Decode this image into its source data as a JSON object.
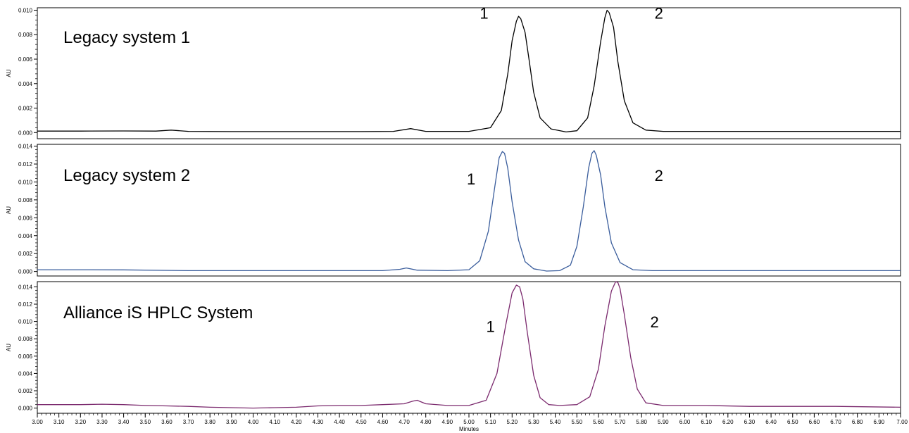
{
  "chart_data": [
    {
      "type": "line",
      "title": "Legacy system 1",
      "ylabel": "AU",
      "xlabel": "",
      "xlim": [
        3.0,
        7.0
      ],
      "ylim": [
        -0.0005,
        0.0102
      ],
      "yticks": [
        "0.000",
        "0.002",
        "0.004",
        "0.006",
        "0.008",
        "0.010"
      ],
      "color": "#000000",
      "series": [
        {
          "x": [
            3.0,
            3.2,
            3.4,
            3.55,
            3.62,
            3.7,
            3.9,
            4.2,
            4.5,
            4.65,
            4.73,
            4.8,
            5.0,
            5.1,
            5.15,
            5.18,
            5.2,
            5.22,
            5.23,
            5.24,
            5.26,
            5.28,
            5.3,
            5.33,
            5.38,
            5.45,
            5.5,
            5.55,
            5.58,
            5.61,
            5.63,
            5.64,
            5.65,
            5.67,
            5.69,
            5.72,
            5.76,
            5.82,
            5.9,
            6.1,
            6.3,
            6.6,
            7.0
          ],
          "y": [
            0.00012,
            0.00012,
            0.00013,
            0.00012,
            0.0002,
            0.0001,
            8e-05,
            8e-05,
            8e-05,
            0.0001,
            0.00032,
            0.0001,
            0.0001,
            0.0004,
            0.0018,
            0.0048,
            0.0075,
            0.0091,
            0.0095,
            0.0093,
            0.0082,
            0.0058,
            0.0033,
            0.0012,
            0.0003,
            5e-05,
            0.00015,
            0.0012,
            0.0038,
            0.0074,
            0.0094,
            0.01,
            0.0098,
            0.0086,
            0.0058,
            0.0026,
            0.0008,
            0.0002,
            0.0001,
            0.0001,
            0.0001,
            0.0001,
            0.0001
          ]
        }
      ],
      "peak_labels": [
        {
          "text": "1",
          "x": 5.07,
          "y": 0.0093
        },
        {
          "text": "2",
          "x": 5.88,
          "y": 0.0093
        }
      ]
    },
    {
      "type": "line",
      "title": "Legacy system 2",
      "ylabel": "AU",
      "xlabel": "",
      "xlim": [
        3.0,
        7.0
      ],
      "ylim": [
        -0.0005,
        0.0142
      ],
      "yticks": [
        "0.000",
        "0.002",
        "0.004",
        "0.006",
        "0.008",
        "0.010",
        "0.012",
        "0.014"
      ],
      "color": "#3a5d9c",
      "series": [
        {
          "x": [
            3.0,
            3.2,
            3.4,
            3.7,
            4.0,
            4.4,
            4.6,
            4.68,
            4.71,
            4.76,
            4.9,
            5.0,
            5.05,
            5.09,
            5.12,
            5.14,
            5.155,
            5.165,
            5.18,
            5.2,
            5.23,
            5.26,
            5.3,
            5.36,
            5.42,
            5.47,
            5.5,
            5.53,
            5.555,
            5.57,
            5.58,
            5.59,
            5.61,
            5.63,
            5.66,
            5.7,
            5.76,
            5.85,
            6.0,
            6.3,
            6.6,
            7.0
          ],
          "y": [
            0.0002,
            0.0002,
            0.00018,
            0.0001,
            0.0001,
            0.0001,
            0.0001,
            0.00025,
            0.0004,
            0.00015,
            0.0001,
            0.0002,
            0.0012,
            0.0045,
            0.0095,
            0.0127,
            0.0134,
            0.0132,
            0.0115,
            0.0078,
            0.0035,
            0.0011,
            0.0003,
            5e-05,
            0.0001,
            0.0007,
            0.0028,
            0.0072,
            0.0116,
            0.0132,
            0.0135,
            0.013,
            0.0108,
            0.0072,
            0.0032,
            0.001,
            0.0002,
            0.0001,
            0.0001,
            0.0001,
            0.0001,
            0.0001
          ]
        }
      ],
      "peak_labels": [
        {
          "text": "1",
          "x": 5.01,
          "y": 0.0097
        },
        {
          "text": "2",
          "x": 5.88,
          "y": 0.0101
        }
      ]
    },
    {
      "type": "line",
      "title": "Alliance iS HPLC System",
      "ylabel": "AU",
      "xlabel": "Minutes",
      "xlim": [
        3.0,
        7.0
      ],
      "ylim": [
        -0.0006,
        0.0146
      ],
      "yticks": [
        "0.000",
        "0.002",
        "0.004",
        "0.006",
        "0.008",
        "0.010",
        "0.012",
        "0.014"
      ],
      "xticks": [
        "3.00",
        "3.10",
        "3.20",
        "3.30",
        "3.40",
        "3.50",
        "3.60",
        "3.70",
        "3.80",
        "3.90",
        "4.00",
        "4.10",
        "4.20",
        "4.30",
        "4.40",
        "4.50",
        "4.60",
        "4.70",
        "4.80",
        "4.90",
        "5.00",
        "5.10",
        "5.20",
        "5.30",
        "5.40",
        "5.50",
        "5.60",
        "5.70",
        "5.80",
        "5.90",
        "6.00",
        "6.10",
        "6.20",
        "6.30",
        "6.40",
        "6.50",
        "6.60",
        "6.70",
        "6.80",
        "6.90",
        "7.00"
      ],
      "color": "#7b2a6e",
      "series": [
        {
          "x": [
            3.0,
            3.1,
            3.2,
            3.3,
            3.4,
            3.5,
            3.6,
            3.7,
            3.8,
            3.9,
            4.0,
            4.1,
            4.2,
            4.3,
            4.4,
            4.5,
            4.6,
            4.7,
            4.74,
            4.76,
            4.8,
            4.9,
            5.0,
            5.08,
            5.13,
            5.17,
            5.2,
            5.22,
            5.235,
            5.25,
            5.27,
            5.3,
            5.33,
            5.37,
            5.42,
            5.5,
            5.56,
            5.6,
            5.63,
            5.66,
            5.68,
            5.69,
            5.7,
            5.72,
            5.75,
            5.78,
            5.82,
            5.9,
            6.1,
            6.3,
            6.5,
            6.7,
            7.0
          ],
          "y": [
            0.0004,
            0.0004,
            0.0004,
            0.00045,
            0.0004,
            0.0003,
            0.00025,
            0.0002,
            0.0001,
            5e-05,
            0.0,
            5e-05,
            0.0001,
            0.00025,
            0.0003,
            0.0003,
            0.0004,
            0.0005,
            0.0008,
            0.0009,
            0.0005,
            0.0003,
            0.0003,
            0.0009,
            0.004,
            0.0095,
            0.0133,
            0.0142,
            0.014,
            0.0126,
            0.0088,
            0.0038,
            0.0012,
            0.0004,
            0.0003,
            0.0004,
            0.0013,
            0.0045,
            0.0095,
            0.0135,
            0.0146,
            0.0145,
            0.0138,
            0.0108,
            0.0058,
            0.0022,
            0.0006,
            0.0003,
            0.0003,
            0.0002,
            0.0002,
            0.0002,
            0.0001
          ]
        }
      ],
      "peak_labels": [
        {
          "text": "1",
          "x": 5.1,
          "y": 0.0088
        },
        {
          "text": "2",
          "x": 5.86,
          "y": 0.0093
        }
      ]
    }
  ]
}
